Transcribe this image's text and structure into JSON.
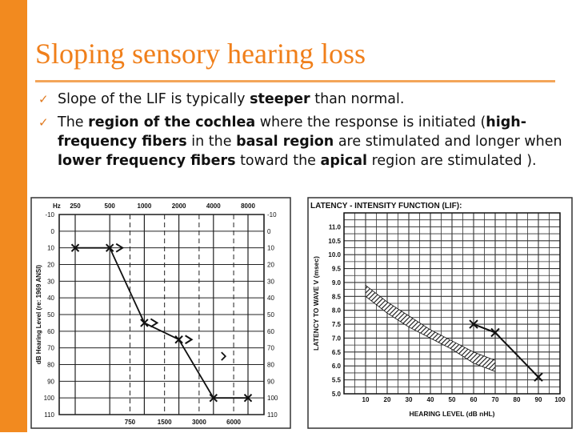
{
  "slide": {
    "title": "Sloping sensory hearing loss",
    "accent_color": "#f28a1f",
    "bullet_icon": "check-icon",
    "bullets": [
      {
        "check": "✓",
        "parts": [
          {
            "text": "Slope of the LIF is typically ",
            "bold": false
          },
          {
            "text": "steeper",
            "bold": true
          },
          {
            "text": " than normal.",
            "bold": false
          }
        ]
      },
      {
        "check": "✓",
        "parts": [
          {
            "text": "The ",
            "bold": false
          },
          {
            "text": "region of the cochlea",
            "bold": true
          },
          {
            "text": " where the response is initiated (",
            "bold": false
          },
          {
            "text": "high-frequency fibers",
            "bold": true
          },
          {
            "text": " in the ",
            "bold": false
          },
          {
            "text": "basal region",
            "bold": true
          },
          {
            "text": " are stimulated and longer when ",
            "bold": false
          },
          {
            "text": "lower frequency fibers",
            "bold": true
          },
          {
            "text": " toward the ",
            "bold": false
          },
          {
            "text": "apical",
            "bold": true
          },
          {
            "text": " region are stimulated ).",
            "bold": false
          }
        ]
      }
    ]
  },
  "chart_data": [
    {
      "type": "line",
      "name_printed": "",
      "ylabel": "dB Hearing Level (re: 1969 ANSI)",
      "x_top_label": "Hz",
      "x_top_ticks": [
        "250",
        "500",
        "1000",
        "2000",
        "4000",
        "8000"
      ],
      "x_bottom_ticks": [
        "750",
        "1500",
        "3000",
        "6000"
      ],
      "y_ticks": [
        -10,
        0,
        10,
        20,
        30,
        40,
        50,
        60,
        70,
        80,
        90,
        100,
        110
      ],
      "ylim": [
        -10,
        110
      ],
      "series": [
        {
          "x": [
            "250",
            "500",
            "1000",
            "2000",
            "4000",
            "8000"
          ],
          "y": [
            10,
            10,
            55,
            65,
            100,
            100
          ],
          "marker": "x"
        },
        {
          "x": [
            "500",
            "1000",
            "2000",
            "4000"
          ],
          "y": [
            10,
            55,
            65,
            75
          ],
          "marker": ">"
        }
      ]
    },
    {
      "type": "line",
      "title": "LATENCY - INTENSITY FUNCTION (LIF):",
      "xlabel": "HEARING LEVEL (dB nHL)",
      "ylabel": "LATENCY TO WAVE V (msec)",
      "x_ticks": [
        10,
        20,
        30,
        40,
        50,
        60,
        70,
        80,
        90,
        100
      ],
      "y_ticks": [
        "11.0",
        "10.5",
        "10.0",
        "9.5",
        "9.0",
        "8.5",
        "8.0",
        "7.5",
        "7.0",
        "6.5",
        "6.0",
        "5.5",
        "5.0"
      ],
      "xlim": [
        0,
        100
      ],
      "ylim": [
        5.0,
        11.5
      ],
      "normal_region": {
        "x": [
          10,
          20,
          30,
          40,
          50,
          60,
          70
        ],
        "upper": [
          8.9,
          8.3,
          7.8,
          7.3,
          6.9,
          6.5,
          6.2
        ],
        "lower": [
          8.5,
          7.9,
          7.4,
          7.0,
          6.6,
          6.1,
          5.8
        ]
      },
      "series": [
        {
          "x": [
            60,
            70,
            90
          ],
          "y": [
            7.5,
            7.2,
            5.6
          ],
          "marker": "x"
        }
      ]
    }
  ]
}
